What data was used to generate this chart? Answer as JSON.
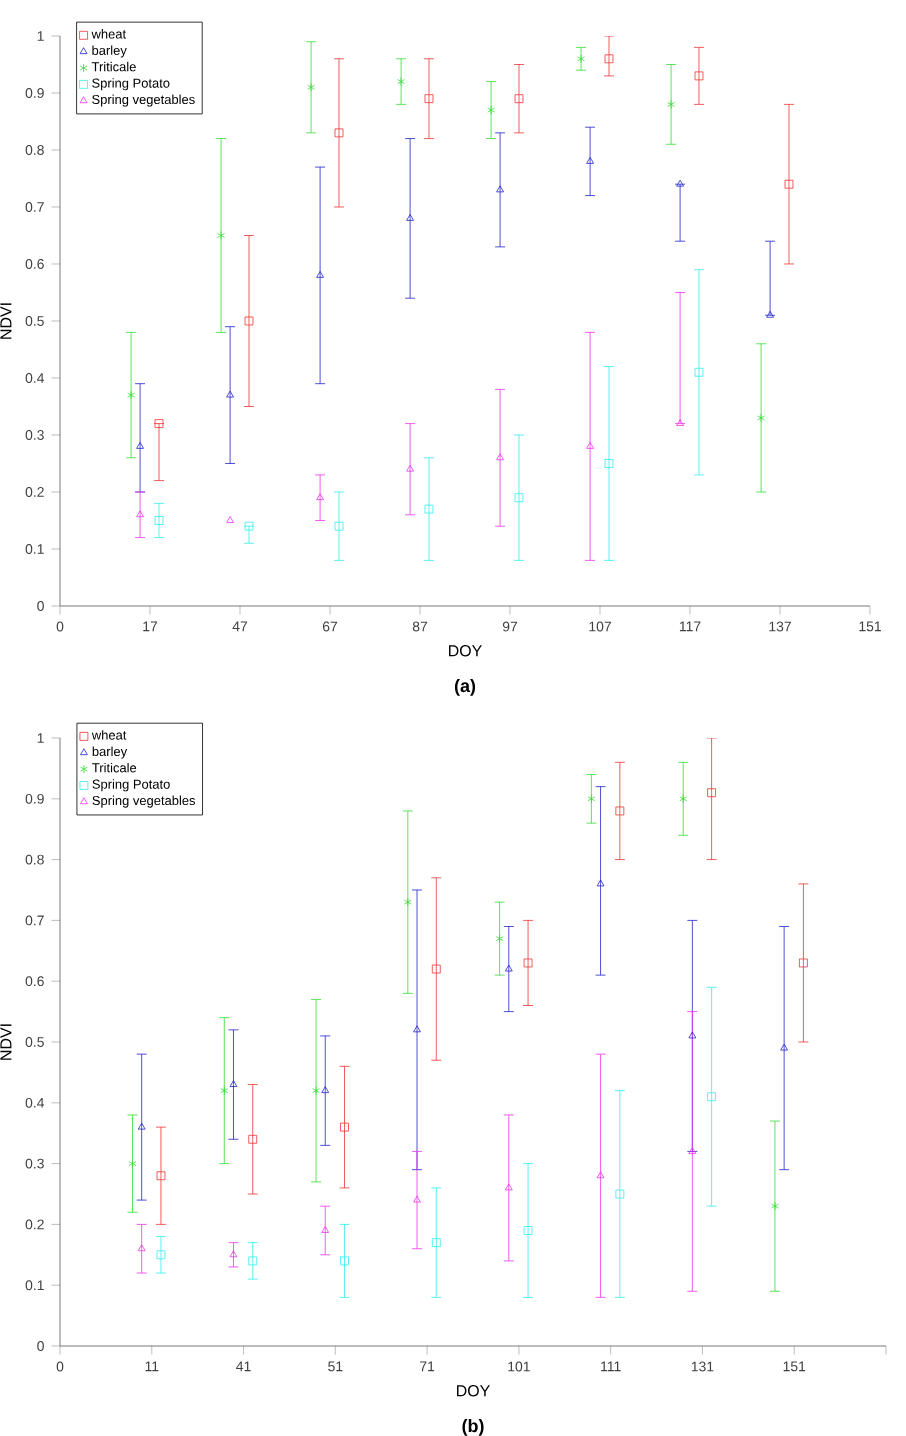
{
  "chart_data": [
    {
      "type": "scatter",
      "xlabel": "DOY",
      "ylabel": "NDVI",
      "annotations": [
        "(a)"
      ],
      "legend": "top left",
      "categories": [
        "0",
        "17",
        "47",
        "67",
        "87",
        "97",
        "107",
        "117",
        "137",
        "151"
      ],
      "ylim": [
        0,
        1
      ],
      "yticks": [
        0,
        0.1,
        0.2,
        0.3,
        0.4,
        0.5,
        0.6,
        0.7,
        0.8,
        0.9,
        1
      ],
      "series": [
        {
          "name": "wheat",
          "color": "#ee3333",
          "marker": "square",
          "values": [
            null,
            0.32,
            0.5,
            0.83,
            0.89,
            0.89,
            0.96,
            0.93,
            0.74,
            null
          ],
          "errors": [
            null,
            [
              0.22,
              0.32
            ],
            [
              0.35,
              0.65
            ],
            [
              0.7,
              0.96
            ],
            [
              0.82,
              0.96
            ],
            [
              0.83,
              0.95
            ],
            [
              0.93,
              1.0
            ],
            [
              0.88,
              0.98
            ],
            [
              0.6,
              0.88
            ],
            null
          ]
        },
        {
          "name": "barley",
          "color": "#2222cc",
          "marker": "triangle",
          "values": [
            null,
            0.28,
            0.37,
            0.58,
            0.68,
            0.73,
            0.78,
            0.74,
            0.51,
            null
          ],
          "errors": [
            null,
            [
              0.2,
              0.39
            ],
            [
              0.25,
              0.49
            ],
            [
              0.39,
              0.77
            ],
            [
              0.54,
              0.82
            ],
            [
              0.63,
              0.83
            ],
            [
              0.72,
              0.84
            ],
            [
              0.64,
              0.74
            ],
            [
              0.51,
              0.64
            ],
            null
          ]
        },
        {
          "name": "Triticale",
          "color": "#33dd33",
          "marker": "cross",
          "values": [
            null,
            0.37,
            0.65,
            0.91,
            0.92,
            0.87,
            0.96,
            0.88,
            0.33,
            null
          ],
          "errors": [
            null,
            [
              0.26,
              0.48
            ],
            [
              0.48,
              0.82
            ],
            [
              0.83,
              0.99
            ],
            [
              0.88,
              0.96
            ],
            [
              0.82,
              0.92
            ],
            [
              0.94,
              0.98
            ],
            [
              0.81,
              0.95
            ],
            [
              0.2,
              0.46
            ],
            null
          ]
        },
        {
          "name": "Spring Potato",
          "color": "#33eeee",
          "marker": "square",
          "values": [
            null,
            0.15,
            0.14,
            0.14,
            0.17,
            0.19,
            0.25,
            0.41,
            null,
            null
          ],
          "errors": [
            null,
            [
              0.12,
              0.18
            ],
            [
              0.11,
              0.14
            ],
            [
              0.08,
              0.2
            ],
            [
              0.08,
              0.26
            ],
            [
              0.08,
              0.3
            ],
            [
              0.08,
              0.42
            ],
            [
              0.23,
              0.59
            ],
            null,
            null
          ]
        },
        {
          "name": "Spring vegetables",
          "color": "#ee33ee",
          "marker": "triangle",
          "values": [
            null,
            0.16,
            0.15,
            0.19,
            0.24,
            0.26,
            0.28,
            0.32,
            null,
            null
          ],
          "errors": [
            null,
            [
              0.12,
              0.2
            ],
            null,
            [
              0.15,
              0.23
            ],
            [
              0.16,
              0.32
            ],
            [
              0.14,
              0.38
            ],
            [
              0.08,
              0.48
            ],
            [
              0.32,
              0.55
            ],
            null,
            null
          ]
        }
      ]
    },
    {
      "type": "scatter",
      "xlabel": "DOY",
      "ylabel": "NDVI",
      "annotations": [
        "(b)"
      ],
      "legend": "top left",
      "categories": [
        "0",
        "11",
        "41",
        "51",
        "71",
        "101",
        "111",
        "131",
        "151",
        null
      ],
      "ylim": [
        0,
        1
      ],
      "yticks": [
        0,
        0.1,
        0.2,
        0.3,
        0.4,
        0.5,
        0.6,
        0.7,
        0.8,
        0.9,
        1
      ],
      "series": [
        {
          "name": "wheat",
          "color": "#ee3333",
          "marker": "square",
          "values": [
            null,
            0.28,
            0.34,
            0.36,
            0.62,
            0.63,
            0.88,
            0.91,
            0.63,
            null
          ],
          "errors": [
            null,
            [
              0.2,
              0.36
            ],
            [
              0.25,
              0.43
            ],
            [
              0.26,
              0.46
            ],
            [
              0.47,
              0.77
            ],
            [
              0.56,
              0.7
            ],
            [
              0.8,
              0.96
            ],
            [
              0.8,
              1.0
            ],
            [
              0.5,
              0.76
            ],
            null
          ]
        },
        {
          "name": "barley",
          "color": "#2222cc",
          "marker": "triangle",
          "values": [
            null,
            0.36,
            0.43,
            0.42,
            0.52,
            0.62,
            0.76,
            0.51,
            0.49,
            null
          ],
          "errors": [
            null,
            [
              0.24,
              0.48
            ],
            [
              0.34,
              0.52
            ],
            [
              0.33,
              0.51
            ],
            [
              0.29,
              0.75
            ],
            [
              0.55,
              0.69
            ],
            [
              0.61,
              0.92
            ],
            [
              0.32,
              0.7
            ],
            [
              0.29,
              0.69
            ],
            null
          ]
        },
        {
          "name": "Triticale",
          "color": "#33dd33",
          "marker": "cross",
          "values": [
            null,
            0.3,
            0.42,
            0.42,
            0.73,
            0.67,
            0.9,
            0.9,
            0.23,
            null
          ],
          "errors": [
            null,
            [
              0.22,
              0.38
            ],
            [
              0.3,
              0.54
            ],
            [
              0.27,
              0.57
            ],
            [
              0.58,
              0.88
            ],
            [
              0.61,
              0.73
            ],
            [
              0.86,
              0.94
            ],
            [
              0.84,
              0.96
            ],
            [
              0.09,
              0.37
            ],
            null
          ]
        },
        {
          "name": "Spring Potato",
          "color": "#33eeee",
          "marker": "square",
          "values": [
            null,
            0.15,
            0.14,
            0.14,
            0.17,
            0.19,
            0.25,
            0.41,
            null,
            null
          ],
          "errors": [
            null,
            [
              0.12,
              0.18
            ],
            [
              0.11,
              0.17
            ],
            [
              0.08,
              0.2
            ],
            [
              0.08,
              0.26
            ],
            [
              0.08,
              0.3
            ],
            [
              0.08,
              0.42
            ],
            [
              0.23,
              0.59
            ],
            null,
            null
          ]
        },
        {
          "name": "Spring vegetables",
          "color": "#ee33ee",
          "marker": "triangle",
          "values": [
            null,
            0.16,
            0.15,
            0.19,
            0.24,
            0.26,
            0.28,
            0.32,
            null,
            null
          ],
          "errors": [
            null,
            [
              0.12,
              0.2
            ],
            [
              0.13,
              0.17
            ],
            [
              0.15,
              0.23
            ],
            [
              0.16,
              0.32
            ],
            [
              0.14,
              0.38
            ],
            [
              0.08,
              0.48
            ],
            [
              0.09,
              0.55
            ],
            null,
            null
          ]
        }
      ]
    }
  ]
}
